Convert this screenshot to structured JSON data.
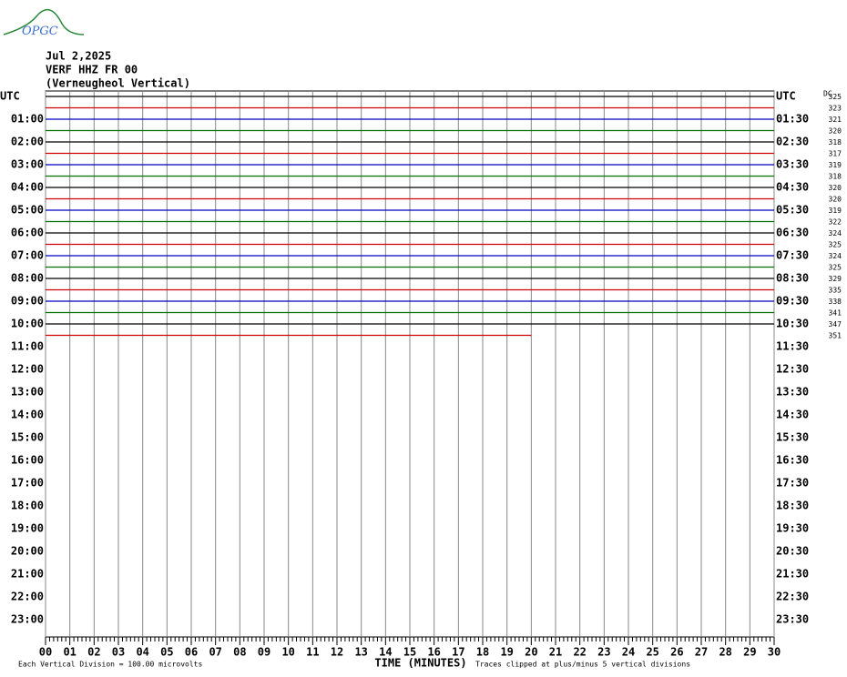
{
  "header": {
    "logo": "OPGC",
    "date": "Jul 2,2025",
    "station": "VERF HHZ FR 00",
    "site": "(Verneugheol Vertical)",
    "dc_label": "DC"
  },
  "left_labels": [
    "UTC",
    "01:00",
    "02:00",
    "03:00",
    "04:00",
    "05:00",
    "06:00",
    "07:00",
    "08:00",
    "09:00",
    "10:00",
    "11:00",
    "12:00",
    "13:00",
    "14:00",
    "15:00",
    "16:00",
    "17:00",
    "18:00",
    "19:00",
    "20:00",
    "21:00",
    "22:00",
    "23:00"
  ],
  "right_labels": [
    "UTC",
    "01:30",
    "02:30",
    "03:30",
    "04:30",
    "05:30",
    "06:30",
    "07:30",
    "08:30",
    "09:30",
    "10:30",
    "11:30",
    "12:30",
    "13:30",
    "14:30",
    "15:30",
    "16:30",
    "17:30",
    "18:30",
    "19:30",
    "20:30",
    "21:30",
    "22:30",
    "23:30"
  ],
  "traces": [
    {
      "color": "#000000",
      "level": 325
    },
    {
      "color": "#d00000",
      "level": 323
    },
    {
      "color": "#0000c0",
      "level": 321
    },
    {
      "color": "#007000",
      "level": 320
    },
    {
      "color": "#000000",
      "level": 318
    },
    {
      "color": "#d00000",
      "level": 317
    },
    {
      "color": "#0000c0",
      "level": 319
    },
    {
      "color": "#007000",
      "level": 318
    },
    {
      "color": "#000000",
      "level": 320
    },
    {
      "color": "#d00000",
      "level": 320
    },
    {
      "color": "#0000c0",
      "level": 319
    },
    {
      "color": "#007000",
      "level": 322
    },
    {
      "color": "#000000",
      "level": 324
    },
    {
      "color": "#d00000",
      "level": 325
    },
    {
      "color": "#0000c0",
      "level": 324
    },
    {
      "color": "#007000",
      "level": 325
    },
    {
      "color": "#000000",
      "level": 329
    },
    {
      "color": "#d00000",
      "level": 335
    },
    {
      "color": "#0000c0",
      "level": 338
    },
    {
      "color": "#007000",
      "level": 341
    },
    {
      "color": "#000000",
      "level": 347
    },
    {
      "color": "#d00000",
      "level": 351
    }
  ],
  "last_trace_end_minute": 20,
  "minutes": [
    "00",
    "01",
    "02",
    "03",
    "04",
    "05",
    "06",
    "07",
    "08",
    "09",
    "10",
    "11",
    "12",
    "13",
    "14",
    "15",
    "16",
    "17",
    "18",
    "19",
    "20",
    "21",
    "22",
    "23",
    "24",
    "25",
    "26",
    "27",
    "28",
    "29",
    "30"
  ],
  "footer": {
    "left": "Each Vertical Division =  100.00 microvolts",
    "center": "TIME (MINUTES)",
    "right": "Traces clipped at plus/minus 5 vertical divisions"
  }
}
